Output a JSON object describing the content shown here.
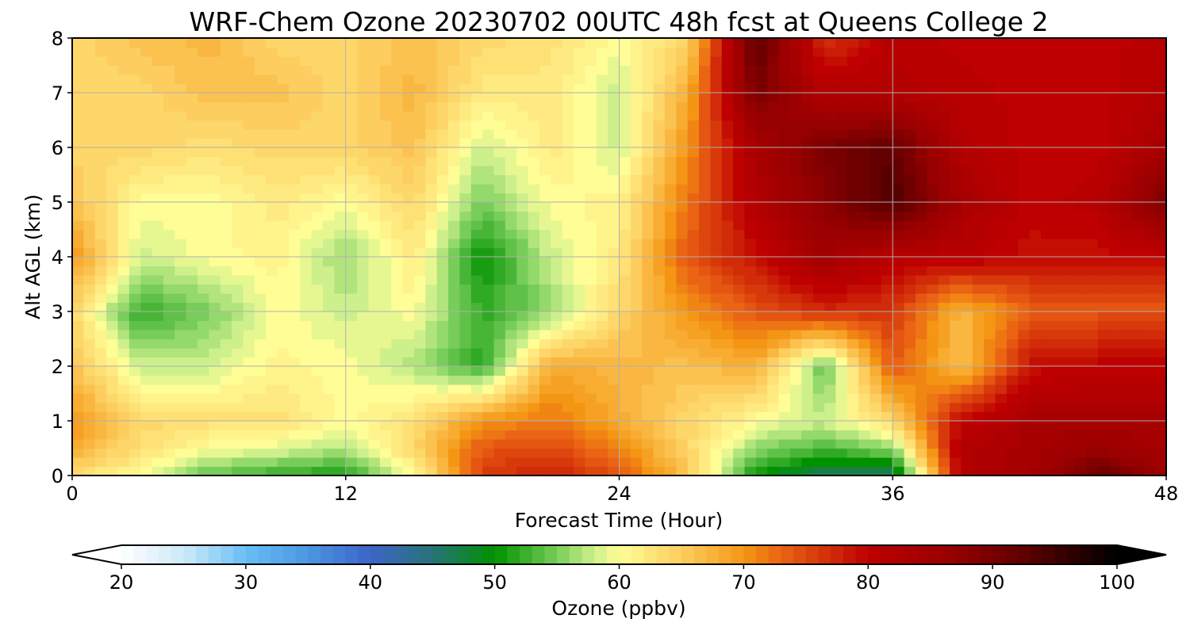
{
  "chart_data": {
    "type": "heatmap",
    "title": "WRF-Chem Ozone  20230702 00UTC 48h fcst at Queens College 2",
    "xlabel": "Forecast Time (Hour)",
    "ylabel": "Alt AGL (km)",
    "xlim": [
      0,
      48
    ],
    "ylim": [
      0,
      8
    ],
    "xticks": [
      0,
      12,
      24,
      36,
      48
    ],
    "yticks": [
      0,
      1,
      2,
      3,
      4,
      5,
      6,
      7,
      8
    ],
    "grid": true,
    "x_hours": [
      0,
      3,
      6,
      9,
      12,
      15,
      18,
      21,
      24,
      27,
      30,
      33,
      36,
      39,
      42,
      45,
      48
    ],
    "z_km": [
      0,
      0.5,
      1,
      2,
      3,
      4,
      5,
      6,
      7,
      8
    ],
    "ozone_ppbv": [
      [
        63,
        60,
        54,
        52,
        51,
        60,
        76,
        78,
        74,
        66,
        50,
        46,
        45,
        82,
        84,
        92,
        86
      ],
      [
        68,
        63,
        60,
        59,
        57,
        64,
        74,
        75,
        71,
        64,
        56,
        53,
        56,
        82,
        84,
        86,
        84
      ],
      [
        70,
        64,
        63,
        63,
        60,
        63,
        70,
        72,
        68,
        64,
        60,
        58,
        64,
        80,
        84,
        84,
        84
      ],
      [
        66,
        58,
        58,
        61,
        60,
        57,
        52,
        68,
        67,
        66,
        68,
        54,
        74,
        66,
        79,
        80,
        80
      ],
      [
        64,
        52,
        55,
        60,
        58,
        60,
        52,
        56,
        64,
        70,
        74,
        77,
        76,
        67,
        73,
        74,
        74
      ],
      [
        70,
        58,
        60,
        61,
        56,
        62,
        50,
        58,
        62,
        74,
        79,
        85,
        81,
        81,
        79,
        79,
        80
      ],
      [
        66,
        60,
        60,
        62,
        60,
        64,
        55,
        60,
        61,
        72,
        82,
        88,
        94,
        84,
        80,
        81,
        90
      ],
      [
        64,
        64,
        63,
        64,
        64,
        66,
        58,
        62,
        58,
        70,
        84,
        90,
        92,
        82,
        80,
        80,
        84
      ],
      [
        64,
        64,
        66,
        66,
        64,
        67,
        62,
        62,
        58,
        68,
        90,
        82,
        82,
        81,
        80,
        80,
        82
      ],
      [
        64,
        66,
        67,
        64,
        64,
        66,
        64,
        63,
        60,
        64,
        93,
        76,
        81,
        80,
        80,
        80,
        81
      ]
    ],
    "colorbar": {
      "label": "Ozone  (ppbv)",
      "min": 20,
      "max": 100,
      "ticks": [
        20,
        30,
        40,
        50,
        60,
        70,
        80,
        90,
        100
      ],
      "extend": "both"
    }
  }
}
